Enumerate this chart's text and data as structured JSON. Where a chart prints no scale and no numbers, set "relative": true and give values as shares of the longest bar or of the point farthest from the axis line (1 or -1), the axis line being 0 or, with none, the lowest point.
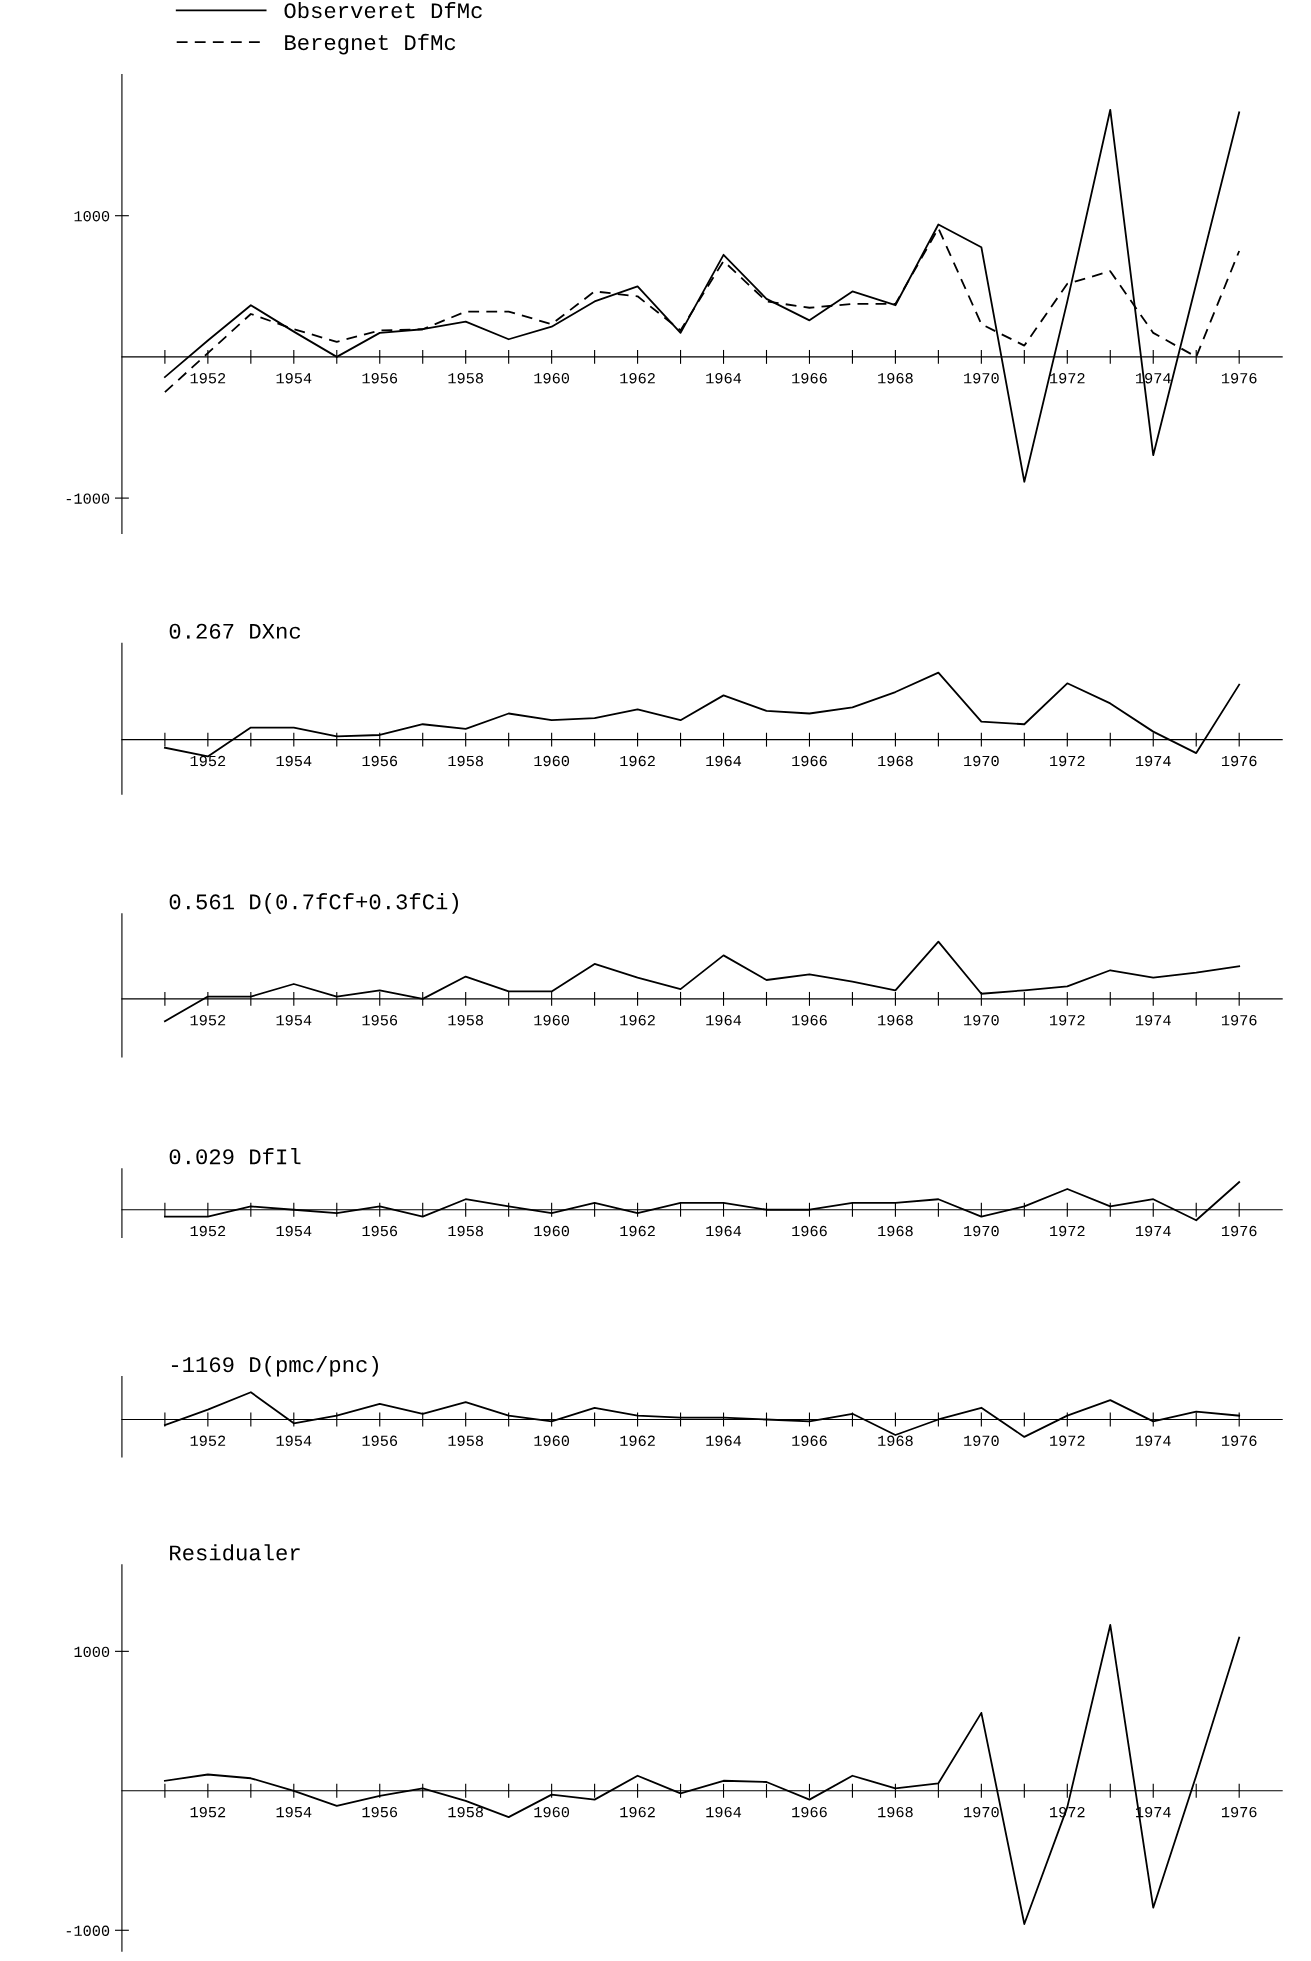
{
  "chart_data": [
    {
      "type": "line",
      "legend": "top left",
      "x": [
        1951,
        1952,
        1953,
        1954,
        1955,
        1956,
        1957,
        1958,
        1959,
        1960,
        1961,
        1962,
        1963,
        1964,
        1965,
        1966,
        1967,
        1968,
        1969,
        1970,
        1971,
        1972,
        1973,
        1974,
        1975,
        1976
      ],
      "xlim": [
        1950,
        1977
      ],
      "xticks": [
        {
          "value": 1951,
          "label": null
        },
        1952,
        {
          "value": 1953,
          "label": null
        },
        1954,
        {
          "value": 1955,
          "label": null
        },
        1956,
        {
          "value": 1957,
          "label": null
        },
        1958,
        {
          "value": 1959,
          "label": null
        },
        1960,
        {
          "value": 1961,
          "label": null
        },
        1962,
        {
          "value": 1963,
          "label": null
        },
        1964,
        {
          "value": 1965,
          "label": null
        },
        1966,
        {
          "value": 1967,
          "label": null
        },
        1968,
        {
          "value": 1969,
          "label": null
        },
        1970,
        {
          "value": 1971,
          "label": null
        },
        1972,
        {
          "value": 1973,
          "label": null
        },
        1974,
        {
          "value": 1975,
          "label": null
        },
        1976
      ],
      "ylim": [
        -1250,
        2000
      ],
      "yticks": [
        -1000,
        1000
      ],
      "series": [
        {
          "name": "Observeret DfMc",
          "color": "#000000",
          "line_style": "solid",
          "values": [
            -143,
            116,
            366,
            179,
            0,
            170,
            196,
            250,
            125,
            214,
            393,
            500,
            170,
            723,
            411,
            259,
            464,
            366,
            938,
            777,
            -884,
            393,
            1750,
            -696,
            518,
            1732
          ]
        },
        {
          "name": "Beregnet DfMc",
          "color": "#000000",
          "line_style": "dashed",
          "values": [
            -250,
            27,
            304,
            196,
            107,
            188,
            196,
            321,
            321,
            232,
            464,
            429,
            188,
            679,
            393,
            348,
            375,
            375,
            911,
            232,
            80,
            518,
            607,
            170,
            0,
            750
          ]
        }
      ]
    },
    {
      "type": "line",
      "title": "0.267 DXnc",
      "relative": true,
      "tick_labels": "x",
      "x": [
        1951,
        1952,
        1953,
        1954,
        1955,
        1956,
        1957,
        1958,
        1959,
        1960,
        1961,
        1962,
        1963,
        1964,
        1965,
        1966,
        1967,
        1968,
        1969,
        1970,
        1971,
        1972,
        1973,
        1974,
        1975,
        1976
      ],
      "xlim": [
        1950,
        1977
      ],
      "xticks": [
        {
          "value": 1951,
          "label": null
        },
        1952,
        {
          "value": 1953,
          "label": null
        },
        1954,
        {
          "value": 1955,
          "label": null
        },
        1956,
        {
          "value": 1957,
          "label": null
        },
        1958,
        {
          "value": 1959,
          "label": null
        },
        1960,
        {
          "value": 1961,
          "label": null
        },
        1962,
        {
          "value": 1963,
          "label": null
        },
        1964,
        {
          "value": 1965,
          "label": null
        },
        1966,
        {
          "value": 1967,
          "label": null
        },
        1968,
        {
          "value": 1969,
          "label": null
        },
        1970,
        {
          "value": 1971,
          "label": null
        },
        1972,
        {
          "value": 1973,
          "label": null
        },
        1974,
        {
          "value": 1975,
          "label": null
        },
        1976
      ],
      "series": [
        {
          "color": "#000000",
          "values": [
            -0.12,
            -0.25,
            0.18,
            0.18,
            0.05,
            0.07,
            0.23,
            0.16,
            0.39,
            0.29,
            0.32,
            0.45,
            0.29,
            0.66,
            0.43,
            0.39,
            0.48,
            0.71,
            1,
            0.27,
            0.23,
            0.84,
            0.54,
            0.12,
            -0.2,
            0.82
          ]
        }
      ]
    },
    {
      "type": "line",
      "title": "0.561 D(0.7fCf+0.3fCi)",
      "relative": true,
      "tick_labels": "x",
      "x": [
        1951,
        1952,
        1953,
        1954,
        1955,
        1956,
        1957,
        1958,
        1959,
        1960,
        1961,
        1962,
        1963,
        1964,
        1965,
        1966,
        1967,
        1968,
        1969,
        1970,
        1971,
        1972,
        1973,
        1974,
        1975,
        1976
      ],
      "xlim": [
        1950,
        1977
      ],
      "xticks": [
        {
          "value": 1951,
          "label": null
        },
        1952,
        {
          "value": 1953,
          "label": null
        },
        1954,
        {
          "value": 1955,
          "label": null
        },
        1956,
        {
          "value": 1957,
          "label": null
        },
        1958,
        {
          "value": 1959,
          "label": null
        },
        1960,
        {
          "value": 1961,
          "label": null
        },
        1962,
        {
          "value": 1963,
          "label": null
        },
        1964,
        {
          "value": 1965,
          "label": null
        },
        1966,
        {
          "value": 1967,
          "label": null
        },
        1968,
        {
          "value": 1969,
          "label": null
        },
        1970,
        {
          "value": 1971,
          "label": null
        },
        1972,
        {
          "value": 1973,
          "label": null
        },
        1974,
        {
          "value": 1975,
          "label": null
        },
        1976
      ],
      "series": [
        {
          "color": "#000000",
          "values": [
            -0.39,
            0.04,
            0.04,
            0.26,
            0.04,
            0.15,
            0,
            0.39,
            0.13,
            0.13,
            0.61,
            0.37,
            0.17,
            0.76,
            0.33,
            0.43,
            0.3,
            0.15,
            1,
            0.09,
            0.15,
            0.22,
            0.5,
            0.37,
            0.46,
            0.57
          ]
        }
      ]
    },
    {
      "type": "line",
      "title": "0.029 DfIl",
      "relative": true,
      "tick_labels": "x",
      "x": [
        1951,
        1952,
        1953,
        1954,
        1955,
        1956,
        1957,
        1958,
        1959,
        1960,
        1961,
        1962,
        1963,
        1964,
        1965,
        1966,
        1967,
        1968,
        1969,
        1970,
        1971,
        1972,
        1973,
        1974,
        1975,
        1976
      ],
      "xlim": [
        1950,
        1977
      ],
      "xticks": [
        {
          "value": 1951,
          "label": null
        },
        1952,
        {
          "value": 1953,
          "label": null
        },
        1954,
        {
          "value": 1955,
          "label": null
        },
        1956,
        {
          "value": 1957,
          "label": null
        },
        1958,
        {
          "value": 1959,
          "label": null
        },
        1960,
        {
          "value": 1961,
          "label": null
        },
        1962,
        {
          "value": 1963,
          "label": null
        },
        1964,
        {
          "value": 1965,
          "label": null
        },
        1966,
        {
          "value": 1967,
          "label": null
        },
        1968,
        {
          "value": 1969,
          "label": null
        },
        1970,
        {
          "value": 1971,
          "label": null
        },
        1972,
        {
          "value": 1973,
          "label": null
        },
        1974,
        {
          "value": 1975,
          "label": null
        },
        1976
      ],
      "series": [
        {
          "color": "#000000",
          "values": [
            -0.25,
            -0.25,
            0.12,
            0,
            -0.12,
            0.12,
            -0.25,
            0.38,
            0.12,
            -0.12,
            0.25,
            -0.12,
            0.25,
            0.25,
            0,
            0,
            0.25,
            0.25,
            0.38,
            -0.25,
            0.12,
            0.75,
            0.12,
            0.38,
            -0.38,
            1
          ]
        }
      ]
    },
    {
      "type": "line",
      "title": "-1169 D(pmc/pnc)",
      "relative": true,
      "tick_labels": "x",
      "x": [
        1951,
        1952,
        1953,
        1954,
        1955,
        1956,
        1957,
        1958,
        1959,
        1960,
        1961,
        1962,
        1963,
        1964,
        1965,
        1966,
        1967,
        1968,
        1969,
        1970,
        1971,
        1972,
        1973,
        1974,
        1975,
        1976
      ],
      "xlim": [
        1950,
        1977
      ],
      "xticks": [
        {
          "value": 1951,
          "label": null
        },
        1952,
        {
          "value": 1953,
          "label": null
        },
        1954,
        {
          "value": 1955,
          "label": null
        },
        1956,
        {
          "value": 1957,
          "label": null
        },
        1958,
        {
          "value": 1959,
          "label": null
        },
        1960,
        {
          "value": 1961,
          "label": null
        },
        1962,
        {
          "value": 1963,
          "label": null
        },
        1964,
        {
          "value": 1965,
          "label": null
        },
        1966,
        {
          "value": 1967,
          "label": null
        },
        1968,
        {
          "value": 1969,
          "label": null
        },
        1970,
        {
          "value": 1971,
          "label": null
        },
        1972,
        {
          "value": 1973,
          "label": null
        },
        1974,
        {
          "value": 1975,
          "label": null
        },
        1976
      ],
      "series": [
        {
          "color": "#000000",
          "values": [
            -0.21,
            0.36,
            1,
            -0.14,
            0.14,
            0.57,
            0.21,
            0.64,
            0.14,
            -0.07,
            0.43,
            0.14,
            0.07,
            0.07,
            0,
            -0.07,
            0.21,
            -0.57,
            0,
            0.43,
            -0.64,
            0.14,
            0.71,
            -0.07,
            0.29,
            0.14
          ]
        }
      ]
    },
    {
      "type": "line",
      "title": "Residualer",
      "x": [
        1951,
        1952,
        1953,
        1954,
        1955,
        1956,
        1957,
        1958,
        1959,
        1960,
        1961,
        1962,
        1963,
        1964,
        1965,
        1966,
        1967,
        1968,
        1969,
        1970,
        1971,
        1972,
        1973,
        1974,
        1975,
        1976
      ],
      "xlim": [
        1950,
        1977
      ],
      "xticks": [
        {
          "value": 1951,
          "label": null
        },
        1952,
        {
          "value": 1953,
          "label": null
        },
        1954,
        {
          "value": 1955,
          "label": null
        },
        1956,
        {
          "value": 1957,
          "label": null
        },
        1958,
        {
          "value": 1959,
          "label": null
        },
        1960,
        {
          "value": 1961,
          "label": null
        },
        1962,
        {
          "value": 1963,
          "label": null
        },
        1964,
        {
          "value": 1965,
          "label": null
        },
        1966,
        {
          "value": 1967,
          "label": null
        },
        1968,
        {
          "value": 1969,
          "label": null
        },
        1970,
        {
          "value": 1971,
          "label": null
        },
        1972,
        {
          "value": 1973,
          "label": null
        },
        1974,
        {
          "value": 1975,
          "label": null
        },
        1976
      ],
      "ylim": [
        -1150,
        1620
      ],
      "yticks": [
        -1000,
        1000
      ],
      "series": [
        {
          "color": "#000000",
          "values": [
            72,
            117,
            90,
            0,
            -108,
            -36,
            18,
            -72,
            -189,
            -27,
            -63,
            108,
            -18,
            72,
            63,
            -63,
            108,
            18,
            54,
            559,
            -955,
            -117,
            1189,
            -838,
            108,
            1099
          ]
        }
      ]
    }
  ]
}
